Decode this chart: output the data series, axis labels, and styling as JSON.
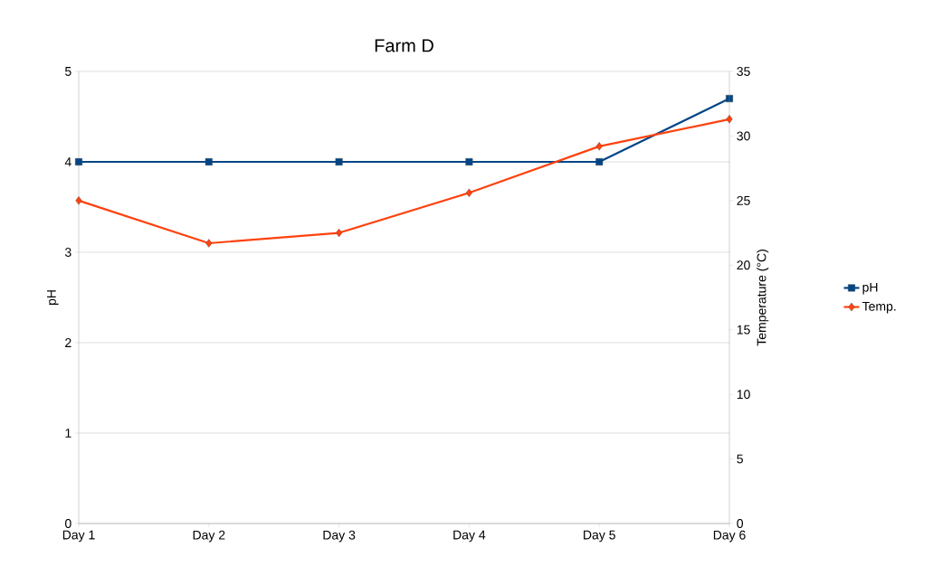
{
  "chart_data": {
    "type": "line",
    "title": "Farm D",
    "ylabel": "pH",
    "y2label": "Temperature (°C)",
    "categories": [
      "Day 1",
      "Day 2",
      "Day 3",
      "Day 4",
      "Day 5",
      "Day 6"
    ],
    "series": [
      {
        "name": "pH",
        "color": "#004586",
        "values": [
          4,
          4,
          4,
          4,
          4,
          4.7
        ],
        "marker": "square"
      },
      {
        "name": "Temp.",
        "color": "#ff420e",
        "values": [
          25,
          21.7,
          22.5,
          25.6,
          29.2,
          31.3
        ],
        "marker": "diamond",
        "axis": "y2"
      }
    ],
    "ylim": [
      0,
      5
    ],
    "yticks": [
      0,
      1,
      2,
      3,
      4,
      5
    ],
    "y2lim": [
      0,
      35
    ],
    "y2ticks": [
      0,
      5,
      10,
      15,
      20,
      25,
      30,
      35
    ],
    "grid": "y",
    "legend": "right",
    "line_style": "solid"
  }
}
